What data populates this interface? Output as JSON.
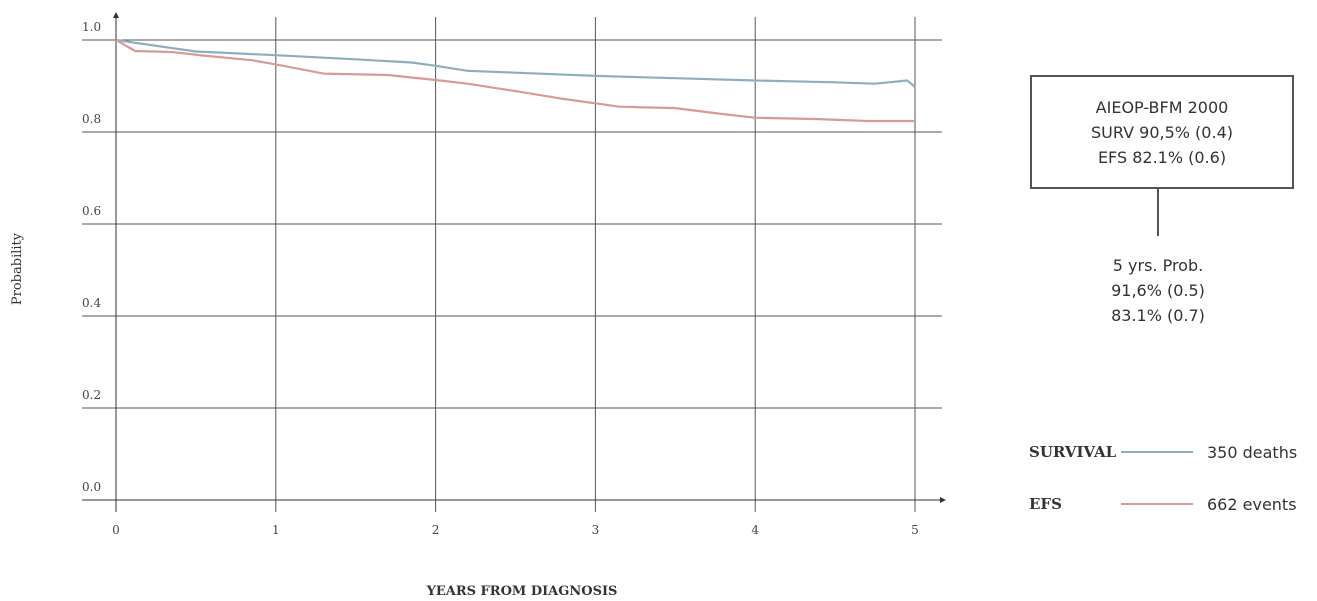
{
  "chart_data": {
    "type": "line",
    "title": "",
    "xlabel": "YEARS FROM DIAGNOSIS",
    "ylabel": "Probability",
    "xlim": [
      0,
      5
    ],
    "ylim": [
      0,
      1
    ],
    "x_ticks": [
      "0",
      "1",
      "2",
      "3",
      "4",
      "5"
    ],
    "y_ticks": [
      "0.0",
      "0.2",
      "0.4",
      "0.6",
      "0.8",
      "1.0"
    ],
    "grid": true,
    "legend_position": "bottom-right",
    "series": [
      {
        "name": "SURVIVAL",
        "color": "#8faebd",
        "x": [
          0,
          0.5,
          1.0,
          1.5,
          1.85,
          2.0,
          2.2,
          2.5,
          3.0,
          3.5,
          4.0,
          4.5,
          4.75,
          4.95,
          5.0
        ],
        "y": [
          1.0,
          0.975,
          0.967,
          0.958,
          0.951,
          0.944,
          0.933,
          0.929,
          0.922,
          0.917,
          0.912,
          0.908,
          0.905,
          0.912,
          0.898
        ]
      },
      {
        "name": "EFS",
        "color": "#d99a97",
        "x": [
          0,
          0.12,
          0.35,
          0.55,
          0.85,
          1.0,
          1.3,
          1.7,
          2.0,
          2.2,
          2.5,
          2.8,
          3.15,
          3.5,
          3.8,
          4.0,
          4.4,
          4.7,
          5.0
        ],
        "y": [
          1.0,
          0.976,
          0.974,
          0.966,
          0.956,
          0.947,
          0.927,
          0.924,
          0.913,
          0.905,
          0.889,
          0.872,
          0.855,
          0.852,
          0.839,
          0.831,
          0.828,
          0.824,
          0.824
        ]
      }
    ]
  },
  "info_box": {
    "line1": "AIEOP-BFM 2000",
    "line2": "SURV 90,5% (0.4)",
    "line3": "EFS 82.1% (0.6)"
  },
  "prob_block": {
    "line1": "5 yrs. Prob.",
    "line2": "91,6% (0.5)",
    "line3": "83.1% (0.7)"
  },
  "legend": [
    {
      "name": "SURVIVAL",
      "count": "350 deaths",
      "color": "#8faebd"
    },
    {
      "name": "EFS",
      "count": "662 events",
      "color": "#d99a97"
    }
  ]
}
